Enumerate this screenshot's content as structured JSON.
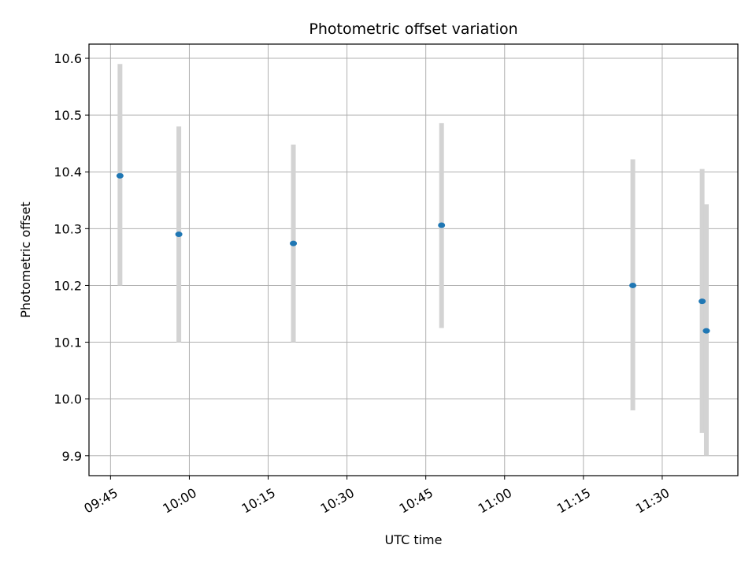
{
  "chart_data": {
    "type": "scatter",
    "title": "Photometric offset variation",
    "xlabel": "UTC time",
    "ylabel": "Photometric offset",
    "x_ticks": [
      "09:45",
      "10:00",
      "10:15",
      "10:30",
      "10:45",
      "11:00",
      "11:15",
      "11:30"
    ],
    "x_tick_minutes": [
      585,
      600,
      615,
      630,
      645,
      660,
      675,
      690
    ],
    "xlim_minutes": [
      580.9,
      704.4
    ],
    "y_ticks": [
      "9.9",
      "10.0",
      "10.1",
      "10.2",
      "10.3",
      "10.4",
      "10.5",
      "10.6"
    ],
    "y_tick_values": [
      9.9,
      10.0,
      10.1,
      10.2,
      10.3,
      10.4,
      10.5,
      10.6
    ],
    "ylim": [
      9.865,
      10.625
    ],
    "grid": true,
    "point_color": "#1f77b4",
    "errorbar_color": "#d3d3d3",
    "points": [
      {
        "time": "09:46:48",
        "y": 10.393,
        "low": 10.2,
        "high": 10.59
      },
      {
        "time": "09:58:00",
        "y": 10.29,
        "low": 10.1,
        "high": 10.48
      },
      {
        "time": "10:19:48",
        "y": 10.274,
        "low": 10.1,
        "high": 10.448
      },
      {
        "time": "10:48:00",
        "y": 10.306,
        "low": 10.125,
        "high": 10.486
      },
      {
        "time": "11:24:24",
        "y": 10.2,
        "low": 9.98,
        "high": 10.422
      },
      {
        "time": "11:37:36",
        "y": 10.172,
        "low": 9.94,
        "high": 10.405
      },
      {
        "time": "11:38:24",
        "y": 10.12,
        "low": 9.9,
        "high": 10.343
      }
    ]
  }
}
